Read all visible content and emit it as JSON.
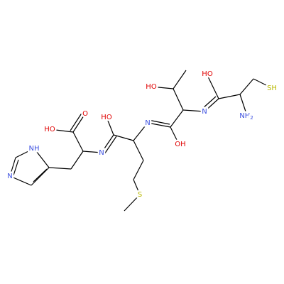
{
  "atoms": [
    {
      "label": "SH",
      "color": "#b8b800"
    },
    {
      "label": "NH",
      "sub": "2",
      "color": "#3b4fe0"
    },
    {
      "label": "HO",
      "color": "#e00000"
    },
    {
      "label": "N",
      "color": "#3b4fe0"
    },
    {
      "label": "HO",
      "color": "#e00000"
    },
    {
      "label": "OH",
      "color": "#e00000"
    },
    {
      "label": "N",
      "color": "#3b4fe0"
    },
    {
      "label": "HO",
      "color": "#e00000"
    },
    {
      "label": "N",
      "color": "#3b4fe0"
    },
    {
      "label": "O",
      "color": "#e00000"
    },
    {
      "label": "HO",
      "color": "#e00000"
    },
    {
      "label": "NH",
      "color": "#3b4fe0"
    },
    {
      "label": "N",
      "color": "#3b4fe0"
    },
    {
      "label": "S",
      "color": "#b8b800"
    }
  ]
}
